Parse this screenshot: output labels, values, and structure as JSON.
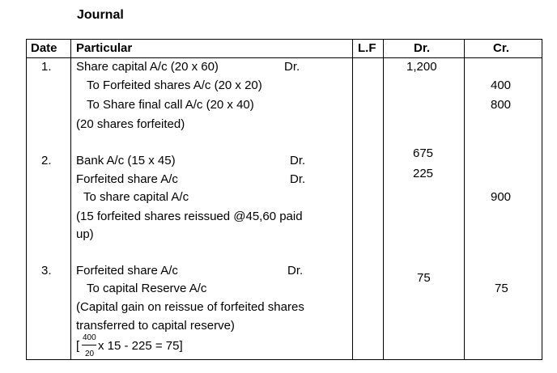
{
  "title": "Journal",
  "headers": {
    "date": "Date",
    "particular": "Particular",
    "lf": "L.F",
    "dr": "Dr.",
    "cr": "Cr."
  },
  "entries": [
    {
      "no": "1.",
      "lines": [
        {
          "text": "Share capital A/c (20 x 60)",
          "marker": "Dr.",
          "dr": "1,200",
          "cr": ""
        },
        {
          "text": "To Forfeited shares A/c (20 x 20)",
          "marker": "",
          "dr": "",
          "cr": "400"
        },
        {
          "text": "To Share final call A/c (20 x 40)",
          "marker": "",
          "dr": "",
          "cr": "800"
        },
        {
          "text": "(20 shares forfeited)",
          "marker": "",
          "dr": "",
          "cr": ""
        }
      ]
    },
    {
      "no": "2.",
      "lines": [
        {
          "text": "Bank A/c (15 x 45)",
          "marker": "Dr.",
          "dr": "675",
          "cr": ""
        },
        {
          "text": "Forfeited share A/c",
          "marker": "Dr.",
          "dr": "225",
          "cr": ""
        },
        {
          "text": "To share capital A/c",
          "marker": "",
          "dr": "",
          "cr": "900"
        },
        {
          "text": "(15 forfeited shares reissued @45,60 paid",
          "marker": "",
          "dr": "",
          "cr": ""
        },
        {
          "text": "up)",
          "marker": "",
          "dr": "",
          "cr": ""
        }
      ]
    },
    {
      "no": "3.",
      "lines": [
        {
          "text": "Forfeited share A/c",
          "marker": "Dr.",
          "dr": "75",
          "cr": ""
        },
        {
          "text": "To capital Reserve A/c",
          "marker": "",
          "dr": "",
          "cr": "75"
        },
        {
          "text": "(Capital gain on reissue of forfeited shares",
          "marker": "",
          "dr": "",
          "cr": ""
        },
        {
          "text": "transferred to capital reserve)",
          "marker": "",
          "dr": "",
          "cr": ""
        }
      ],
      "formula": {
        "open": "[",
        "numerator": "400",
        "denominator": "20",
        "rest": "x 15 - 225 = 75]"
      }
    }
  ]
}
